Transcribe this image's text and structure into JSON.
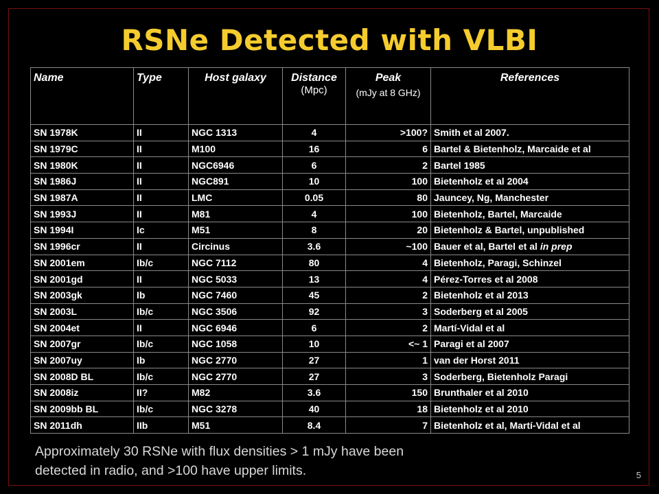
{
  "slide": {
    "title": "RSNe Detected with VLBI",
    "page_number": "5",
    "footer": [
      "Approximately 30 RSNe with flux densities > 1 mJy have been",
      "detected in radio, and >100 have upper limits."
    ],
    "colors": {
      "background": "#000000",
      "title": "#f5cc2e",
      "text": "#ffffff",
      "frame": "#7a0f0f"
    }
  },
  "table": {
    "headers": {
      "name": "Name",
      "type": "Type",
      "host": "Host galaxy",
      "distance": "Distance",
      "distance_unit": "(Mpc)",
      "peak": "Peak",
      "peak_unit": "(mJy at 8 GHz)",
      "references": "References"
    },
    "rows": [
      {
        "name": "SN 1978K",
        "type": "II",
        "host": "NGC 1313",
        "distance": "4",
        "peak": ">100?",
        "ref": "Smith et al 2007."
      },
      {
        "name": "SN 1979C",
        "type": "II",
        "host": "M100",
        "distance": "16",
        "peak": "6",
        "ref": "Bartel & Bietenholz, Marcaide et al"
      },
      {
        "name": "SN 1980K",
        "type": "II",
        "host": "NGC6946",
        "distance": "6",
        "peak": "2",
        "ref": "Bartel 1985"
      },
      {
        "name": "SN 1986J",
        "type": "II",
        "host": "NGC891",
        "distance": "10",
        "peak": "100",
        "ref": "Bietenholz et al 2004"
      },
      {
        "name": "SN 1987A",
        "type": "II",
        "host": "LMC",
        "distance": "0.05",
        "peak": "80",
        "ref": "Jauncey, Ng, Manchester"
      },
      {
        "name": "SN 1993J",
        "type": "II",
        "host": "M81",
        "distance": "4",
        "peak": "100",
        "ref": "Bietenholz, Bartel, Marcaide"
      },
      {
        "name": "SN 1994I",
        "type": "Ic",
        "host": "M51",
        "distance": "8",
        "peak": "20",
        "ref": "Bietenholz & Bartel, unpublished"
      },
      {
        "name": "SN 1996cr",
        "type": "II",
        "host": "Circinus",
        "distance": "3.6",
        "peak": "~100",
        "ref": "Bauer et al, Bartel et al ",
        "ref_italic": "in prep"
      },
      {
        "name": "SN 2001em",
        "type": "Ib/c",
        "host": "NGC 7112",
        "distance": "80",
        "peak": "4",
        "ref": "Bietenholz, Paragi, Schinzel"
      },
      {
        "name": "SN 2001gd",
        "type": "II",
        "host": "NGC 5033",
        "distance": "13",
        "peak": "4",
        "ref": "Pérez-Torres et al 2008"
      },
      {
        "name": "SN 2003gk",
        "type": "Ib",
        "host": "NGC 7460",
        "distance": "45",
        "peak": "2",
        "ref": "Bietenholz et al 2013"
      },
      {
        "name": "SN 2003L",
        "type": "Ib/c",
        "host": "NGC 3506",
        "distance": "92",
        "peak": "3",
        "ref": "Soderberg et al 2005"
      },
      {
        "name": "SN 2004et",
        "type": "II",
        "host": "NGC 6946",
        "distance": "6",
        "peak": "2",
        "ref": "Martí-Vidal et al"
      },
      {
        "name": "SN 2007gr",
        "type": "Ib/c",
        "host": "NGC 1058",
        "distance": "10",
        "peak": "<~ 1",
        "ref": "Paragi et al 2007"
      },
      {
        "name": "SN 2007uy",
        "type": "Ib",
        "host": "NGC 2770",
        "distance": "27",
        "peak": "1",
        "ref": "van der Horst 2011"
      },
      {
        "name": "SN 2008D BL",
        "type": "Ib/c",
        "host": "NGC 2770",
        "distance": "27",
        "peak": "3",
        "ref": "Soderberg, Bietenholz Paragi"
      },
      {
        "name": "SN 2008iz",
        "type": "II?",
        "host": "M82",
        "distance": "3.6",
        "peak": "150",
        "ref": "Brunthaler et al 2010"
      },
      {
        "name": "SN 2009bb BL",
        "type": "Ib/c",
        "host": "NGC 3278",
        "distance": "40",
        "peak": "18",
        "ref": "Bietenholz et al 2010"
      },
      {
        "name": "SN 2011dh",
        "type": "IIb",
        "host": "M51",
        "distance": "8.4",
        "peak": "7",
        "ref": "Bietenholz et al, Martí-Vidal et al"
      }
    ]
  }
}
